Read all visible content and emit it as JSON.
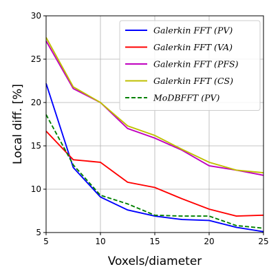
{
  "chart_data": {
    "type": "line",
    "title": "",
    "xlabel": "Voxels/diameter",
    "ylabel": "Local diff. [%]",
    "xlim": [
      5,
      25
    ],
    "ylim": [
      5,
      30
    ],
    "xticks": [
      5,
      10,
      15,
      20,
      25
    ],
    "yticks": [
      5,
      10,
      15,
      20,
      25,
      30
    ],
    "grid": true,
    "legend_position": "top-right",
    "x": [
      5,
      7.5,
      10,
      12.5,
      15,
      17.5,
      20,
      22.5,
      25
    ],
    "series": [
      {
        "name": "Galerkin FFT (PV)",
        "color": "#0000ff",
        "dash": "solid",
        "values": [
          22.2,
          12.5,
          9.1,
          7.6,
          6.9,
          6.5,
          6.4,
          5.6,
          5.1
        ]
      },
      {
        "name": "Galerkin FFT (VA)",
        "color": "#ff0000",
        "dash": "solid",
        "values": [
          16.7,
          13.4,
          13.1,
          10.8,
          10.2,
          8.9,
          7.7,
          6.9,
          7.0
        ]
      },
      {
        "name": "Galerkin FFT (PFS)",
        "color": "#bf00bf",
        "dash": "solid",
        "values": [
          27.1,
          21.6,
          20.0,
          17.0,
          15.9,
          14.5,
          12.7,
          12.2,
          11.6
        ]
      },
      {
        "name": "Galerkin FFT (CS)",
        "color": "#bfbf00",
        "dash": "solid",
        "values": [
          27.5,
          21.8,
          20.0,
          17.3,
          16.2,
          14.6,
          13.1,
          12.2,
          11.9
        ]
      },
      {
        "name": "MoDBFFT (PV)",
        "color": "#008000",
        "dash": "dashed",
        "values": [
          18.6,
          12.8,
          9.3,
          8.3,
          7.0,
          6.9,
          6.9,
          5.8,
          5.5
        ]
      }
    ]
  }
}
